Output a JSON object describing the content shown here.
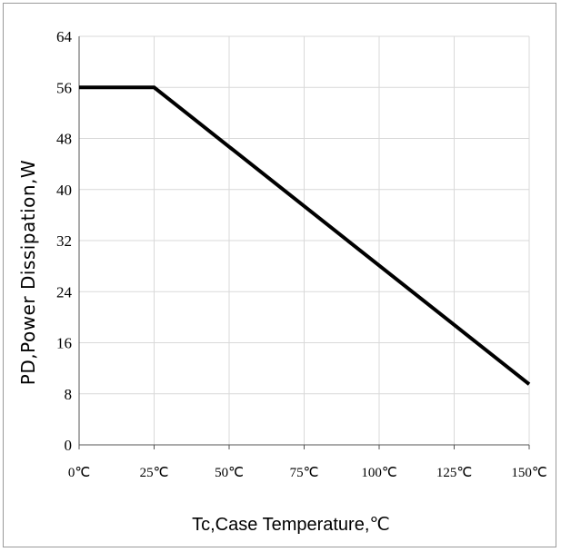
{
  "chart_data": {
    "type": "line",
    "title": "",
    "xlabel": "Tc,Case Temperature,℃",
    "ylabel": "PD,Power Dissipation,W",
    "x": [
      0,
      25,
      150
    ],
    "series": [
      {
        "values": [
          56,
          56,
          9.5
        ]
      }
    ],
    "xlim": [
      0,
      150
    ],
    "ylim": [
      0,
      64
    ],
    "x_ticks": [
      0,
      25,
      50,
      75,
      100,
      125,
      150
    ],
    "x_tick_labels": [
      "0℃",
      "25℃",
      "50℃",
      "75℃",
      "100℃",
      "125℃",
      "150℃"
    ],
    "y_ticks": [
      0,
      8,
      16,
      24,
      32,
      40,
      48,
      56,
      64
    ],
    "y_tick_labels": [
      "0",
      "8",
      "16",
      "24",
      "32",
      "40",
      "48",
      "56",
      "64"
    ],
    "grid": true,
    "line_color": "#000000",
    "grid_color": "#d9d9d9"
  }
}
